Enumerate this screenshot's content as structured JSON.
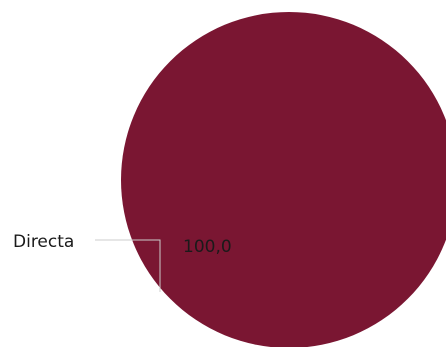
{
  "chart_data": {
    "type": "pie",
    "slices": [
      {
        "label": "Directa",
        "value": 100.0,
        "display_value": "100,0",
        "color": "#7a1632"
      }
    ],
    "legend": "none"
  }
}
